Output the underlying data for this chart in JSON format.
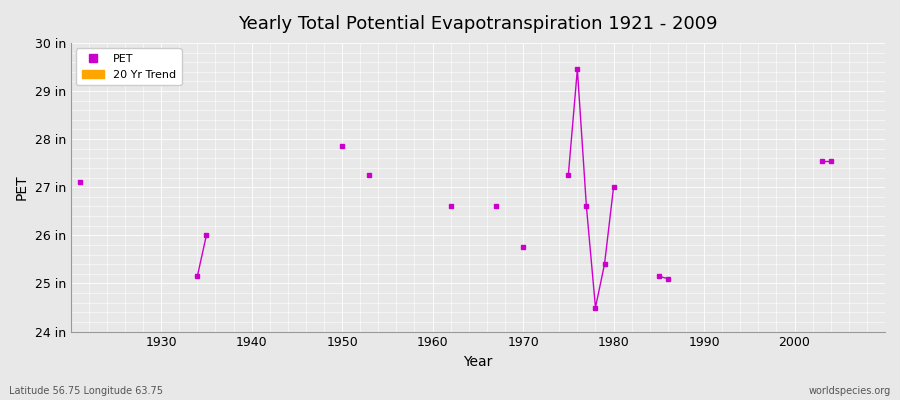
{
  "title": "Yearly Total Potential Evapotranspiration 1921 - 2009",
  "xlabel": "Year",
  "ylabel": "PET",
  "footnote_left": "Latitude 56.75 Longitude 63.75",
  "footnote_right": "worldspecies.org",
  "xlim": [
    1920,
    2010
  ],
  "ylim": [
    24,
    30
  ],
  "yticks": [
    24,
    25,
    26,
    27,
    28,
    29,
    30
  ],
  "ytick_labels": [
    "24 in",
    "25 in",
    "26 in",
    "27 in",
    "28 in",
    "29 in",
    "30 in"
  ],
  "xticks": [
    1930,
    1940,
    1950,
    1960,
    1970,
    1980,
    1990,
    2000
  ],
  "bg_color": "#E8E8E8",
  "grid_color": "#FFFFFF",
  "pet_color": "#CC00CC",
  "trend_color": "#FFA500",
  "pet_data": [
    [
      1921,
      27.1
    ],
    [
      1934,
      25.15
    ],
    [
      1935,
      26.0
    ],
    [
      1950,
      27.85
    ],
    [
      1953,
      27.25
    ],
    [
      1962,
      26.6
    ],
    [
      1967,
      26.6
    ],
    [
      1970,
      25.75
    ],
    [
      1975,
      27.25
    ],
    [
      1976,
      29.45
    ],
    [
      1977,
      26.6
    ],
    [
      1978,
      24.5
    ],
    [
      1979,
      25.4
    ],
    [
      1980,
      27.0
    ],
    [
      1985,
      25.15
    ],
    [
      1986,
      25.1
    ],
    [
      2003,
      27.55
    ],
    [
      2004,
      27.55
    ]
  ]
}
